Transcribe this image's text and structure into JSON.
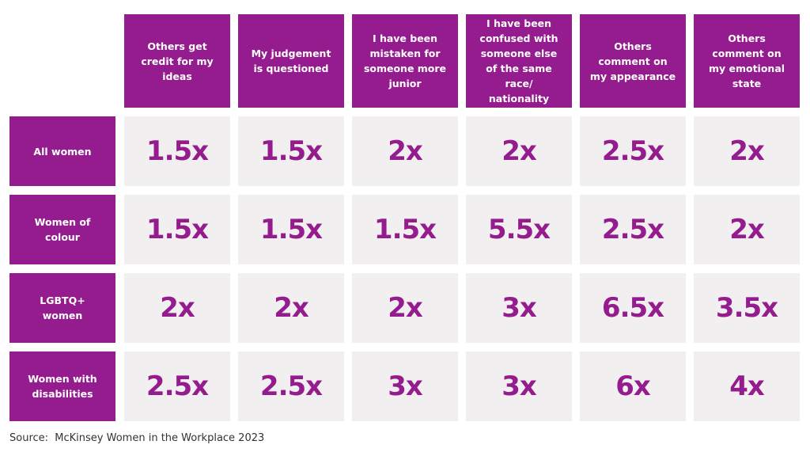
{
  "table": {
    "columns": [
      "Others get credit for my ideas",
      "My judgement is questioned",
      "I have been mistaken for someone more junior",
      "I have been confused with someone else of the same race/ nationality",
      "Others comment on my appearance",
      "Others comment on my emotional state"
    ],
    "rows": [
      {
        "label": "All women",
        "cells": [
          "1.5x",
          "1.5x",
          "2x",
          "2x",
          "2.5x",
          "2x"
        ]
      },
      {
        "label": "Women of colour",
        "cells": [
          "1.5x",
          "1.5x",
          "1.5x",
          "5.5x",
          "2.5x",
          "2x"
        ]
      },
      {
        "label": "LGBTQ+ women",
        "cells": [
          "2x",
          "2x",
          "2x",
          "3x",
          "6.5x",
          "3.5x"
        ]
      },
      {
        "label": "Women with disabilities",
        "cells": [
          "2.5x",
          "2.5x",
          "3x",
          "3x",
          "6x",
          "4x"
        ]
      }
    ]
  },
  "footer": {
    "source": "Source:  McKinsey Women in the Workplace 2023"
  }
}
